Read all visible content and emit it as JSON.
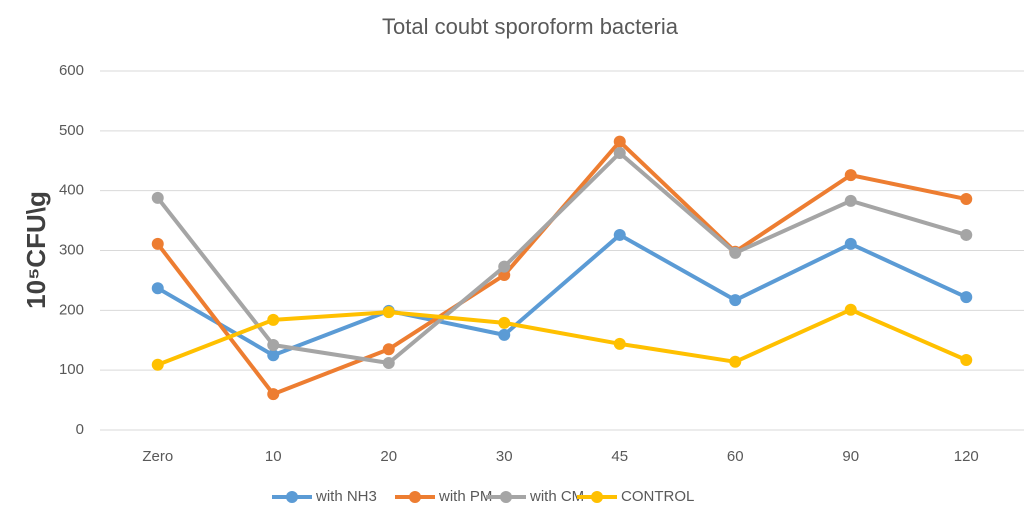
{
  "chart_data": {
    "type": "line",
    "title": "Total coubt sporoform bacteria",
    "y_label": "10⁵CFU\\g",
    "categories": [
      "Zero",
      "10",
      "20",
      "30",
      "45",
      "60",
      "90",
      "120"
    ],
    "series": [
      {
        "name": "with NH3",
        "color": "#5b9bd5",
        "values": [
          237,
          125,
          199,
          159,
          326,
          217,
          311,
          222
        ]
      },
      {
        "name": "with PM",
        "color": "#ed7d31",
        "values": [
          311,
          60,
          135,
          259,
          482,
          298,
          426,
          386
        ]
      },
      {
        "name": "with CM",
        "color": "#a5a5a5",
        "values": [
          388,
          142,
          112,
          273,
          463,
          296,
          383,
          326
        ]
      },
      {
        "name": "CONTROL",
        "color": "#ffc000",
        "values": [
          109,
          184,
          197,
          179,
          144,
          114,
          201,
          117
        ]
      }
    ],
    "ylim": [
      0,
      600
    ],
    "yticks": [
      0,
      100,
      200,
      300,
      400,
      500,
      600
    ],
    "grid": true,
    "legend": "bottom"
  }
}
